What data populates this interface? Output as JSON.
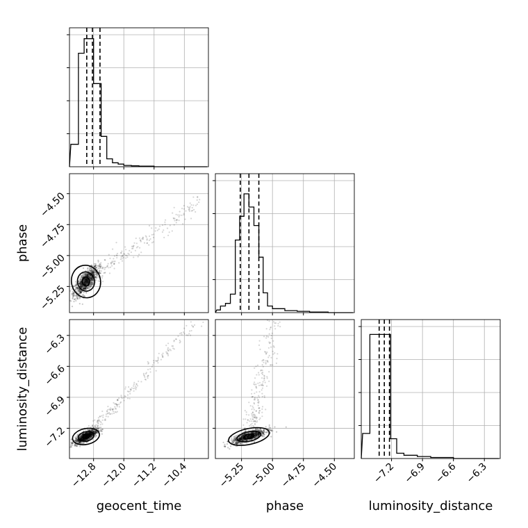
{
  "chart_data": {
    "type": "corner",
    "parameters": [
      {
        "name": "geocent_time",
        "label": "geocent_time",
        "range": [
          -13.4,
          -9.8
        ],
        "ticks": [
          -12.8,
          -12.0,
          -11.2,
          -10.4
        ],
        "tick_labels": [
          "−12.8",
          "−12.0",
          "−11.2",
          "−10.4"
        ],
        "quantiles": [
          -12.98,
          -12.83,
          -12.63
        ],
        "hist": {
          "edges": [
            -13.4,
            -13.2,
            -13.05,
            -12.95,
            -12.8,
            -12.6,
            -12.45,
            -12.3,
            -12.15,
            -12.0,
            -11.8,
            -11.6,
            -11.2,
            -10.8,
            -9.8
          ],
          "counts": [
            0.17,
            0.86,
            0.97,
            0.97,
            0.63,
            0.23,
            0.06,
            0.03,
            0.02,
            0.01,
            0.007,
            0.004,
            0.0,
            0.0
          ]
        }
      },
      {
        "name": "phase",
        "label": "phase",
        "range": [
          -5.45,
          -4.35
        ],
        "ticks": [
          -5.25,
          -5.0,
          -4.75,
          -4.5
        ],
        "tick_labels": [
          "−5.25",
          "−5.00",
          "−4.75",
          "−4.50"
        ],
        "quantiles": [
          -5.26,
          -5.19,
          -5.11
        ],
        "hist": {
          "edges": [
            -5.45,
            -5.42,
            -5.38,
            -5.34,
            -5.3,
            -5.265,
            -5.23,
            -5.19,
            -5.15,
            -5.11,
            -5.075,
            -5.04,
            -5.0,
            -4.9,
            -4.8,
            -4.7,
            -4.55,
            -4.35
          ],
          "counts": [
            0.02,
            0.05,
            0.07,
            0.14,
            0.55,
            0.73,
            0.9,
            0.8,
            0.66,
            0.42,
            0.15,
            0.05,
            0.03,
            0.015,
            0.01,
            0.005,
            0.0
          ]
        }
      },
      {
        "name": "luminosity_distance",
        "label": "luminosity_distance",
        "range": [
          -7.48,
          -6.16
        ],
        "ticks": [
          -7.2,
          -6.9,
          -6.6,
          -6.3
        ],
        "tick_labels": [
          "−7.2",
          "−6.9",
          "−6.6",
          "−6.3"
        ],
        "quantiles": [
          -7.32,
          -7.27,
          -7.22
        ],
        "hist": {
          "edges": [
            -7.48,
            -7.41,
            -7.36,
            -7.31,
            -7.26,
            -7.21,
            -7.15,
            -7.08,
            -6.95,
            -6.82,
            -6.6,
            -6.16
          ],
          "counts": [
            0.19,
            0.94,
            0.94,
            0.94,
            0.94,
            0.15,
            0.04,
            0.025,
            0.015,
            0.008,
            0.0
          ]
        }
      }
    ],
    "scatter_2d": [
      {
        "x": "geocent_time",
        "y": "phase",
        "center": [
          -13.0,
          -5.21
        ],
        "spread": [
          0.16,
          0.06
        ],
        "trend": [
          2.6,
          0.8
        ]
      },
      {
        "x": "geocent_time",
        "y": "luminosity_distance",
        "center": [
          -13.0,
          -7.28
        ],
        "spread": [
          0.15,
          0.035
        ],
        "trend": [
          2.6,
          1.1
        ]
      },
      {
        "x": "phase",
        "y": "luminosity_distance",
        "center": [
          -5.19,
          -7.28
        ],
        "spread": [
          0.07,
          0.035
        ],
        "trend": [
          0.7,
          1.1
        ]
      }
    ],
    "grid": true,
    "legend": "none"
  }
}
